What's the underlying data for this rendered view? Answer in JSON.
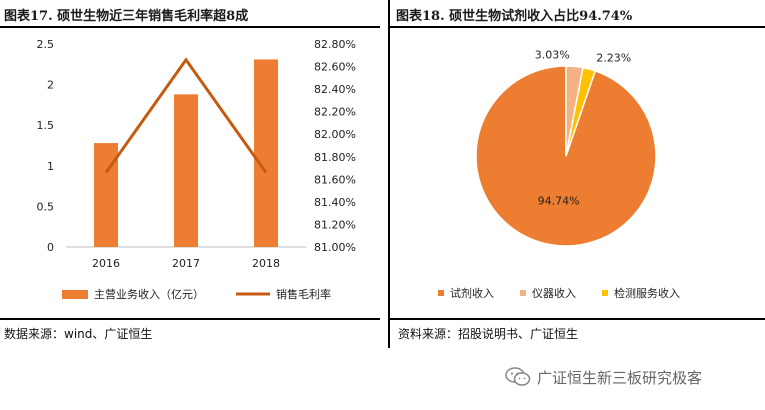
{
  "left": {
    "title": "图表17. 硕世生物近三年销售毛利率超8成",
    "source": "数据来源：wind、广证恒生"
  },
  "right": {
    "title": "图表18. 硕世生物试剂收入占比94.74%",
    "source": "资料来源：招股说明书、广证恒生"
  },
  "watermark": {
    "text": "广证恒生新三板研究极客"
  },
  "colors": {
    "orange": "#ED7D31",
    "pink": "#F4B183",
    "yellow": "#FFC000",
    "line": "#C55A11"
  },
  "chart_data": [
    {
      "type": "bar",
      "categories": [
        "2016",
        "2017",
        "2018"
      ],
      "series": [
        {
          "name": "主营业务收入（亿元）",
          "type": "bar",
          "axis": "left",
          "values": [
            1.28,
            1.88,
            2.31
          ]
        },
        {
          "name": "销售毛利率",
          "type": "line",
          "axis": "right",
          "values": [
            81.66,
            82.66,
            81.66
          ]
        }
      ],
      "y_left": {
        "range": [
          0,
          2.5
        ],
        "ticks": [
          "0",
          "0.5",
          "1",
          "1.5",
          "2",
          "2.5"
        ]
      },
      "y_right": {
        "range": [
          81.0,
          82.8
        ],
        "ticks": [
          "81.00%",
          "81.20%",
          "81.40%",
          "81.60%",
          "81.80%",
          "82.00%",
          "82.20%",
          "82.40%",
          "82.60%",
          "82.80%"
        ]
      },
      "legend": "bottom",
      "grid": false
    },
    {
      "type": "pie",
      "slices": [
        {
          "name": "试剂收入",
          "value": 94.74,
          "label": "94.74%"
        },
        {
          "name": "仪器收入",
          "value": 3.03,
          "label": "3.03%"
        },
        {
          "name": "检测服务收入",
          "value": 2.23,
          "label": "2.23%"
        }
      ],
      "legend": "bottom"
    }
  ]
}
